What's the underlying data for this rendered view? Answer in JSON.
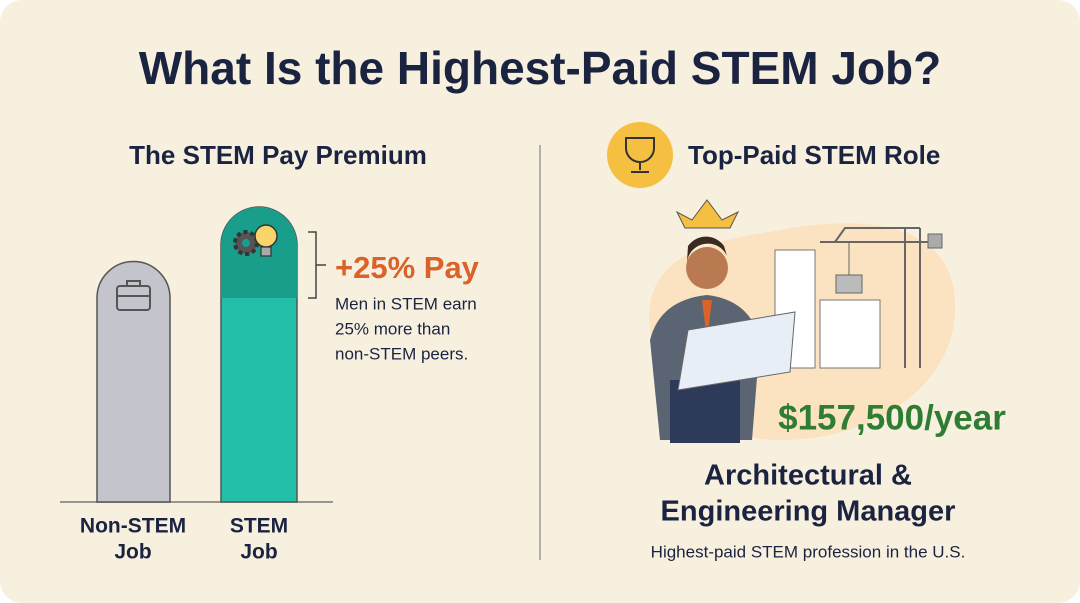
{
  "title": "What Is the Highest-Paid STEM Job?",
  "left": {
    "heading": "The STEM Pay Premium",
    "bars": [
      {
        "label": [
          "Non-STEM",
          "Job"
        ]
      },
      {
        "label": [
          "STEM",
          "Job"
        ]
      }
    ],
    "premium": {
      "headline": "+25% Pay",
      "text": [
        "Men in STEM earn",
        "25% more than",
        "non-STEM peers."
      ]
    }
  },
  "right": {
    "heading": "Top-Paid STEM Role",
    "salary": "$157,500/year",
    "role": [
      "Architectural &",
      "Engineering Manager"
    ],
    "note": "Highest-paid STEM profession in the U.S."
  }
}
